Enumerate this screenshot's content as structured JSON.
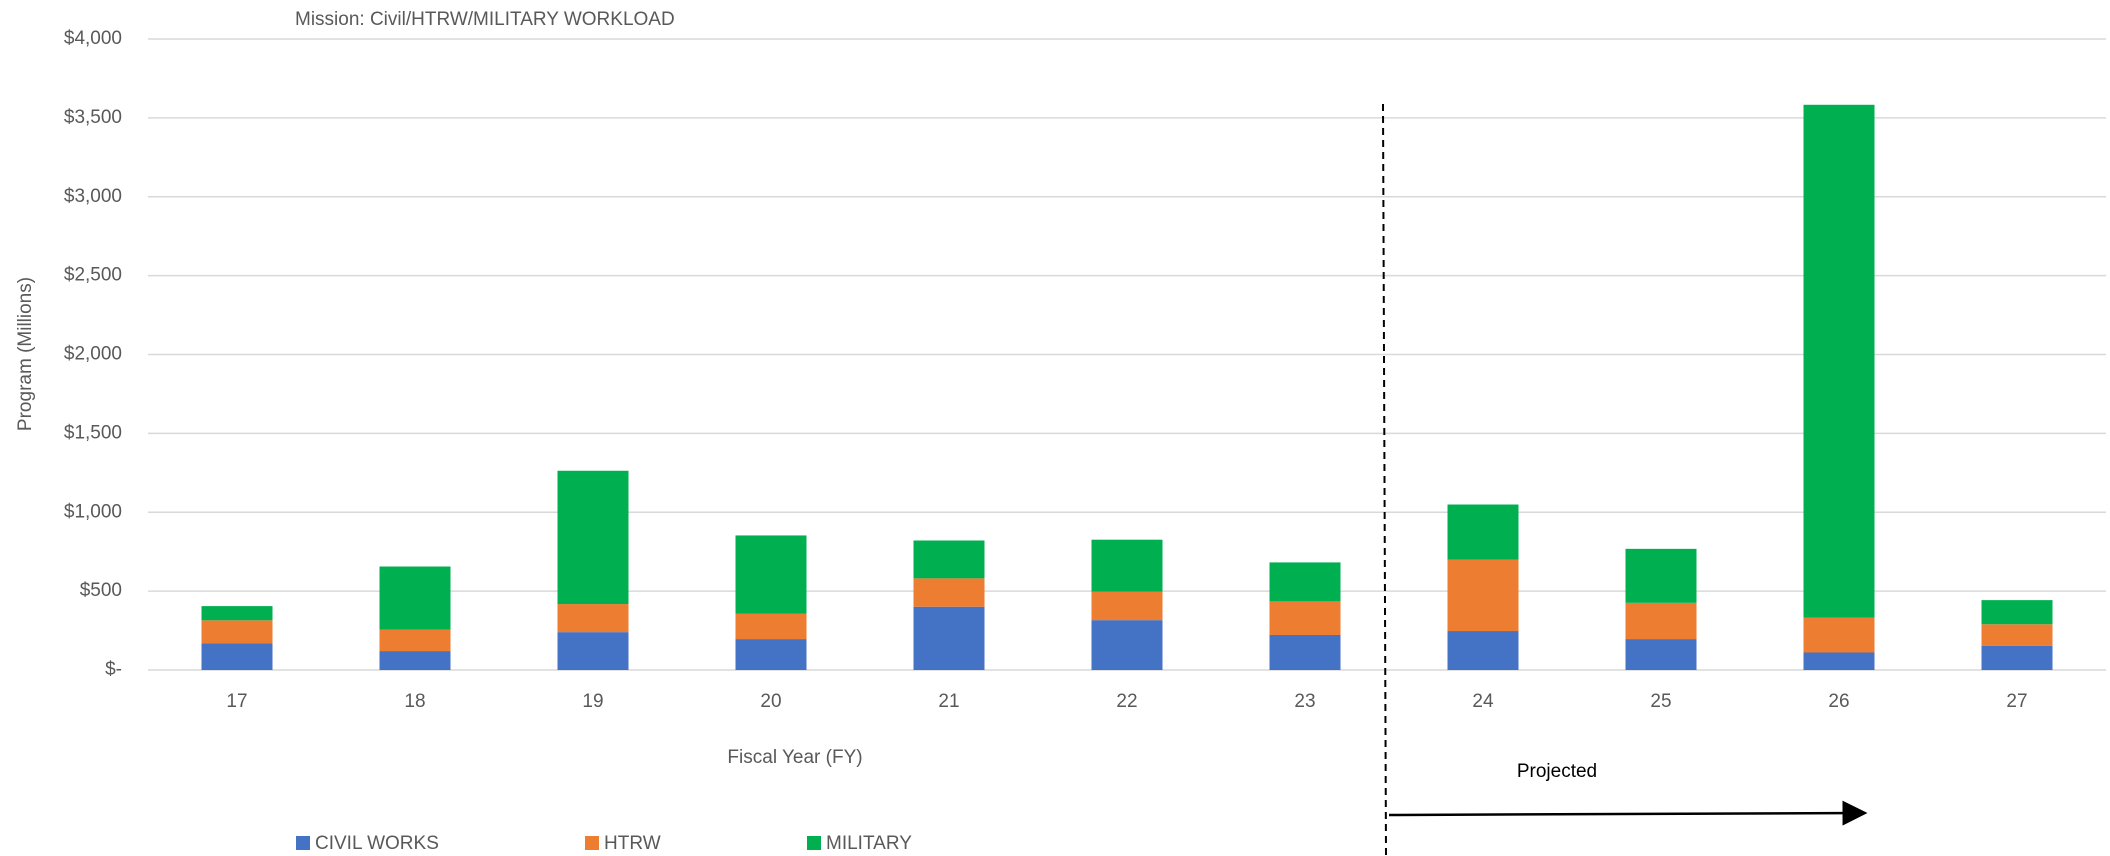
{
  "chart_data": {
    "type": "stacked_bar",
    "title": "Mission:  Civil/HTRW/MILITARY WORKLOAD",
    "x_label": "Fiscal Year (FY)",
    "y_label": "Program (Millions)",
    "annotation": "Projected",
    "categories": [
      "17",
      "18",
      "19",
      "20",
      "21",
      "22",
      "23",
      "24",
      "25",
      "26",
      "27"
    ],
    "series": [
      {
        "name": "CIVIL WORKS",
        "color": "#4472c4",
        "values": [
          170,
          120,
          240,
          196,
          401,
          316,
          222,
          247,
          196,
          111,
          154
        ]
      },
      {
        "name": "HTRW",
        "color": "#ed7d31",
        "values": [
          145,
          136,
          178,
          162,
          180,
          180,
          213,
          452,
          230,
          222,
          136
        ]
      },
      {
        "name": "MILITARY",
        "color": "#00b050",
        "values": [
          90,
          400,
          845,
          495,
          240,
          330,
          247,
          350,
          342,
          3250,
          153
        ]
      }
    ],
    "ylim": [
      0,
      4000
    ],
    "yticks": [
      {
        "value": 0,
        "label": "$-"
      },
      {
        "value": 500,
        "label": "$500"
      },
      {
        "value": 1000,
        "label": "$1,000"
      },
      {
        "value": 1500,
        "label": "$1,500"
      },
      {
        "value": 2000,
        "label": "$2,000"
      },
      {
        "value": 2500,
        "label": "$2,500"
      },
      {
        "value": 3000,
        "label": "$3,000"
      },
      {
        "value": 3500,
        "label": "$3,500"
      },
      {
        "value": 4000,
        "label": "$4,000"
      }
    ],
    "grid": true,
    "legend": "bottom"
  }
}
